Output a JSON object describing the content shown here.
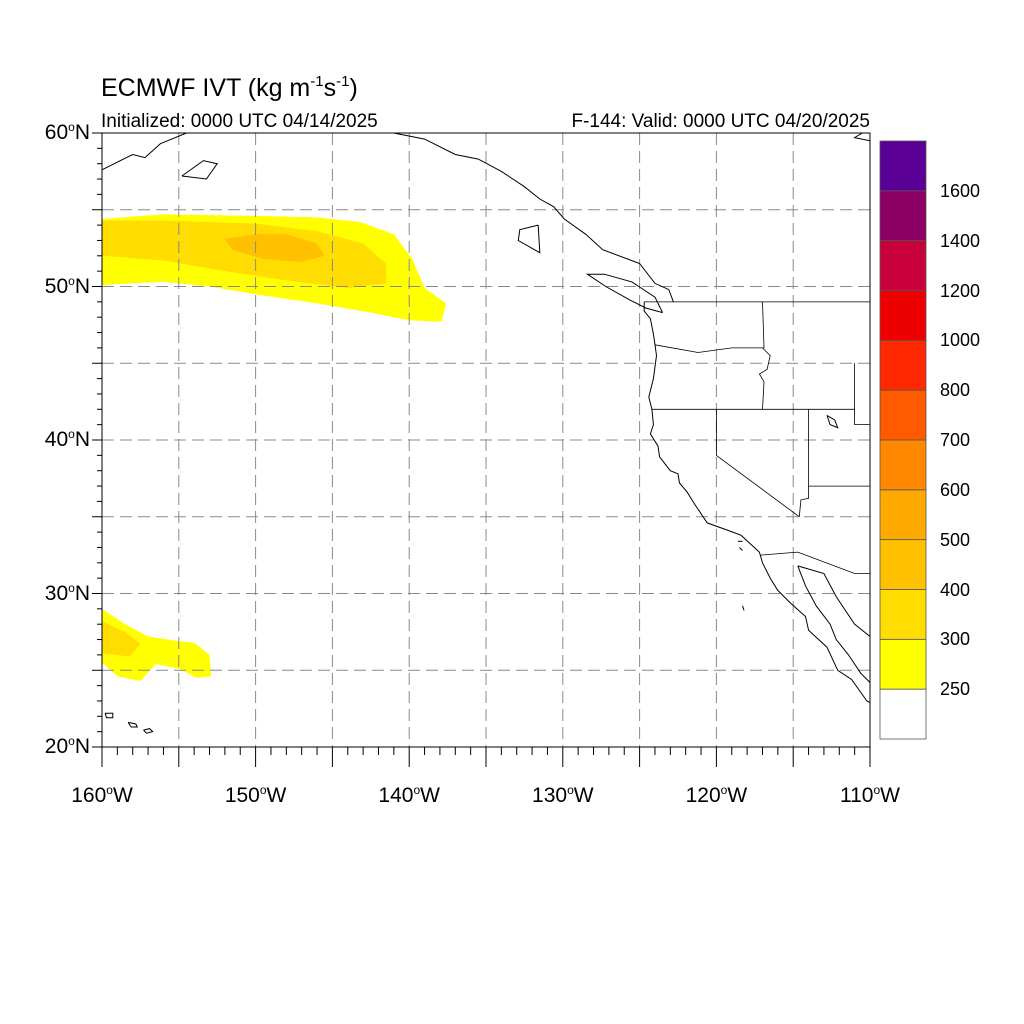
{
  "header": {
    "title_prefix": "ECMWF IVT (kg m",
    "title_exp1": "-1",
    "title_mid": "s",
    "title_exp2": "-1",
    "title_suffix": ")",
    "initialized": "Initialized: 0000 UTC 04/14/2025",
    "valid": "F-144: Valid: 0000 UTC 04/20/2025"
  },
  "map": {
    "extent": {
      "lon_min": -160,
      "lon_max": -110,
      "lat_min": 20,
      "lat_max": 60
    },
    "gridlines": "dashed",
    "lat_ticks": [
      {
        "value": 60,
        "label": "60",
        "suffix": "N"
      },
      {
        "value": 50,
        "label": "50",
        "suffix": "N"
      },
      {
        "value": 40,
        "label": "40",
        "suffix": "N"
      },
      {
        "value": 30,
        "label": "30",
        "suffix": "N"
      },
      {
        "value": 20,
        "label": "20",
        "suffix": "N"
      }
    ],
    "lon_ticks": [
      {
        "value": -160,
        "label": "160",
        "suffix": "W"
      },
      {
        "value": -150,
        "label": "150",
        "suffix": "W"
      },
      {
        "value": -140,
        "label": "140",
        "suffix": "W"
      },
      {
        "value": -130,
        "label": "130",
        "suffix": "W"
      },
      {
        "value": -120,
        "label": "120",
        "suffix": "W"
      },
      {
        "value": -110,
        "label": "110",
        "suffix": "W"
      }
    ],
    "ivt_regions": [
      {
        "band": "250-300",
        "color": "#ffff00",
        "polygon": [
          [
            -160,
            54.4
          ],
          [
            -156,
            54.7
          ],
          [
            -150,
            54.6
          ],
          [
            -146,
            54.5
          ],
          [
            -143.2,
            54.2
          ],
          [
            -141,
            53.4
          ],
          [
            -139.8,
            51.8
          ],
          [
            -139,
            49.9
          ],
          [
            -137.6,
            48.9
          ],
          [
            -137.9,
            47.7
          ],
          [
            -140,
            47.8
          ],
          [
            -142.5,
            48.3
          ],
          [
            -146,
            48.9
          ],
          [
            -150,
            49.5
          ],
          [
            -153,
            50.0
          ],
          [
            -156,
            50.3
          ],
          [
            -160,
            50.1
          ]
        ]
      },
      {
        "band": "300-400",
        "color": "#ffdd00",
        "polygon": [
          [
            -160,
            54.3
          ],
          [
            -156,
            54.3
          ],
          [
            -150,
            54.1
          ],
          [
            -146,
            53.6
          ],
          [
            -143,
            52.8
          ],
          [
            -141.5,
            51.5
          ],
          [
            -141.5,
            50.2
          ],
          [
            -144,
            49.9
          ],
          [
            -148,
            50.4
          ],
          [
            -152,
            51.0
          ],
          [
            -156,
            51.7
          ],
          [
            -160,
            52.0
          ]
        ]
      },
      {
        "band": "400-500",
        "color": "#ffc000",
        "polygon": [
          [
            -152,
            53.1
          ],
          [
            -150,
            53.4
          ],
          [
            -148,
            53.4
          ],
          [
            -146,
            52.8
          ],
          [
            -145.5,
            52.0
          ],
          [
            -147,
            51.6
          ],
          [
            -149.5,
            51.8
          ],
          [
            -151.5,
            52.4
          ]
        ]
      },
      {
        "band": "250-300",
        "color": "#ffff00",
        "polygon": [
          [
            -160,
            29.0
          ],
          [
            -158.5,
            28.0
          ],
          [
            -157,
            27.2
          ],
          [
            -155,
            26.9
          ],
          [
            -154,
            26.8
          ],
          [
            -153,
            26.0
          ],
          [
            -152.9,
            24.6
          ],
          [
            -153.8,
            24.5
          ],
          [
            -155,
            25.1
          ],
          [
            -156.5,
            25.4
          ],
          [
            -157.5,
            24.3
          ],
          [
            -159,
            24.6
          ],
          [
            -160,
            25.5
          ]
        ]
      },
      {
        "band": "300-400",
        "color": "#ffdd00",
        "polygon": [
          [
            -160,
            28.2
          ],
          [
            -158.5,
            27.5
          ],
          [
            -157.5,
            26.7
          ],
          [
            -158.2,
            25.9
          ],
          [
            -160,
            26.1
          ]
        ]
      }
    ],
    "state_lines": [
      [
        [
          -124.7,
          49.0
        ],
        [
          -110,
          49.0
        ]
      ],
      [
        [
          -124.0,
          46.2
        ],
        [
          -121.2,
          45.7
        ],
        [
          -119.0,
          46.0
        ],
        [
          -116.9,
          46.0
        ],
        [
          -117.0,
          49.0
        ]
      ],
      [
        [
          -117.0,
          46.0
        ],
        [
          -116.5,
          45.5
        ],
        [
          -116.7,
          44.6
        ],
        [
          -117.2,
          44.3
        ],
        [
          -116.9,
          43.8
        ],
        [
          -117.0,
          42.0
        ]
      ],
      [
        [
          -124.2,
          42.0
        ],
        [
          -111.0,
          42.0
        ]
      ],
      [
        [
          -120.0,
          42.0
        ],
        [
          -120.0,
          39.0
        ],
        [
          -114.6,
          35.0
        ]
      ],
      [
        [
          -114.0,
          42.0
        ],
        [
          -114.0,
          37.0
        ],
        [
          -110,
          37.0
        ]
      ],
      [
        [
          -114.0,
          37.0
        ],
        [
          -114.0,
          36.2
        ],
        [
          -114.5,
          36.1
        ],
        [
          -114.6,
          35.0
        ]
      ],
      [
        [
          -111.0,
          45.0
        ],
        [
          -111.0,
          41.0
        ],
        [
          -110,
          41.0
        ]
      ],
      [
        [
          -117.1,
          32.5
        ],
        [
          -114.7,
          32.7
        ],
        [
          -111.0,
          31.3
        ],
        [
          -110,
          31.3
        ]
      ]
    ],
    "coastlines": [
      [
        [
          -124.7,
          49.0
        ],
        [
          -124.7,
          48.4
        ],
        [
          -124.3,
          47.9
        ],
        [
          -124.1,
          46.9
        ],
        [
          -124.0,
          46.2
        ],
        [
          -123.9,
          45.5
        ],
        [
          -124.1,
          44.0
        ],
        [
          -124.4,
          42.8
        ],
        [
          -124.2,
          42.0
        ],
        [
          -124.1,
          41.0
        ],
        [
          -124.3,
          40.4
        ],
        [
          -123.8,
          39.6
        ],
        [
          -123.7,
          38.9
        ],
        [
          -123.0,
          38.0
        ],
        [
          -122.5,
          37.8
        ],
        [
          -122.4,
          37.2
        ],
        [
          -121.9,
          36.6
        ],
        [
          -121.4,
          35.8
        ],
        [
          -120.6,
          34.6
        ],
        [
          -119.2,
          34.1
        ],
        [
          -118.4,
          33.8
        ],
        [
          -117.2,
          32.7
        ],
        [
          -117.0,
          32.0
        ],
        [
          -116.5,
          31.0
        ],
        [
          -116.0,
          30.2
        ],
        [
          -115.2,
          29.4
        ],
        [
          -114.2,
          28.5
        ],
        [
          -114.0,
          27.6
        ],
        [
          -112.8,
          26.5
        ],
        [
          -112.1,
          25.0
        ],
        [
          -111.2,
          24.4
        ],
        [
          -110.2,
          23.0
        ],
        [
          -110,
          22.9
        ]
      ],
      [
        [
          -114.7,
          31.8
        ],
        [
          -114.2,
          30.5
        ],
        [
          -113.5,
          29.2
        ],
        [
          -112.6,
          28.0
        ],
        [
          -112.2,
          27.0
        ],
        [
          -111.4,
          26.0
        ],
        [
          -110.6,
          24.8
        ],
        [
          -110,
          24.2
        ]
      ],
      [
        [
          -114.7,
          31.8
        ],
        [
          -113.0,
          31.3
        ],
        [
          -112.2,
          29.8
        ],
        [
          -111.0,
          28.0
        ],
        [
          -110,
          27.2
        ]
      ],
      [
        [
          -122.8,
          49.0
        ],
        [
          -123.1,
          49.8
        ],
        [
          -124.0,
          50.2
        ],
        [
          -125.0,
          51.5
        ],
        [
          -127.4,
          52.4
        ],
        [
          -128.5,
          53.4
        ],
        [
          -129.9,
          54.4
        ],
        [
          -130.6,
          55.2
        ],
        [
          -131.5,
          55.7
        ],
        [
          -132.5,
          56.5
        ],
        [
          -134.0,
          57.5
        ],
        [
          -135.5,
          58.3
        ],
        [
          -137.0,
          58.6
        ],
        [
          -139.0,
          59.6
        ],
        [
          -141.0,
          60.0
        ]
      ],
      [
        [
          -123.5,
          48.3
        ],
        [
          -124.6,
          48.6
        ],
        [
          -125.6,
          49.1
        ],
        [
          -127.2,
          50.0
        ],
        [
          -128.4,
          50.8
        ],
        [
          -127.3,
          50.8
        ],
        [
          -125.5,
          50.3
        ],
        [
          -124.0,
          49.3
        ],
        [
          -123.5,
          48.3
        ]
      ],
      [
        [
          -131.6,
          54.0
        ],
        [
          -132.8,
          53.7
        ],
        [
          -132.9,
          53.0
        ],
        [
          -131.5,
          52.2
        ],
        [
          -131.6,
          54.0
        ]
      ],
      [
        [
          -160,
          57.6
        ],
        [
          -158.0,
          58.6
        ],
        [
          -157.2,
          58.4
        ],
        [
          -156.2,
          59.3
        ],
        [
          -154.5,
          60.0
        ]
      ],
      [
        [
          -154.8,
          57.2
        ],
        [
          -153.4,
          58.2
        ],
        [
          -152.5,
          58.0
        ],
        [
          -153.2,
          57.0
        ],
        [
          -154.8,
          57.2
        ]
      ],
      [
        [
          -156.0,
          19.9
        ],
        [
          -155.8,
          20.0
        ],
        [
          -155.4,
          19.9
        ],
        [
          -155.2,
          19.6
        ],
        [
          -155.6,
          19.3
        ],
        [
          -156.0,
          19.9
        ]
      ],
      [
        [
          -157.3,
          21.1
        ],
        [
          -156.9,
          21.2
        ],
        [
          -156.7,
          21.0
        ],
        [
          -157.1,
          20.9
        ],
        [
          -157.3,
          21.1
        ]
      ],
      [
        [
          -158.3,
          21.6
        ],
        [
          -157.8,
          21.5
        ],
        [
          -157.7,
          21.3
        ],
        [
          -158.1,
          21.3
        ],
        [
          -158.3,
          21.6
        ]
      ],
      [
        [
          -159.8,
          22.2
        ],
        [
          -159.3,
          22.2
        ],
        [
          -159.3,
          21.9
        ],
        [
          -159.7,
          21.9
        ],
        [
          -159.8,
          22.2
        ]
      ],
      [
        [
          -112.8,
          41.6
        ],
        [
          -112.3,
          41.3
        ],
        [
          -112.1,
          40.8
        ],
        [
          -112.6,
          41.0
        ],
        [
          -112.8,
          41.6
        ]
      ],
      [
        [
          -118.6,
          33.4
        ],
        [
          -118.3,
          33.4
        ]
      ],
      [
        [
          -118.5,
          33.0
        ],
        [
          -118.3,
          32.8
        ]
      ],
      [
        [
          -118.3,
          29.2
        ],
        [
          -118.2,
          28.9
        ]
      ],
      [
        [
          -110.5,
          60.0
        ],
        [
          -111.0,
          59.7
        ],
        [
          -110,
          59.5
        ]
      ]
    ]
  },
  "colorbar": {
    "labels": [
      "1600",
      "1400",
      "1200",
      "1000",
      "800",
      "700",
      "600",
      "500",
      "400",
      "300",
      "250"
    ],
    "bands": [
      {
        "color": "#ffffff"
      },
      {
        "color": "#ffff00"
      },
      {
        "color": "#ffdd00"
      },
      {
        "color": "#ffc000"
      },
      {
        "color": "#ffaa00"
      },
      {
        "color": "#ff8800"
      },
      {
        "color": "#ff5a00"
      },
      {
        "color": "#ff2800"
      },
      {
        "color": "#ee0000"
      },
      {
        "color": "#c8003c"
      },
      {
        "color": "#8c0064"
      },
      {
        "color": "#5a0096"
      }
    ]
  }
}
